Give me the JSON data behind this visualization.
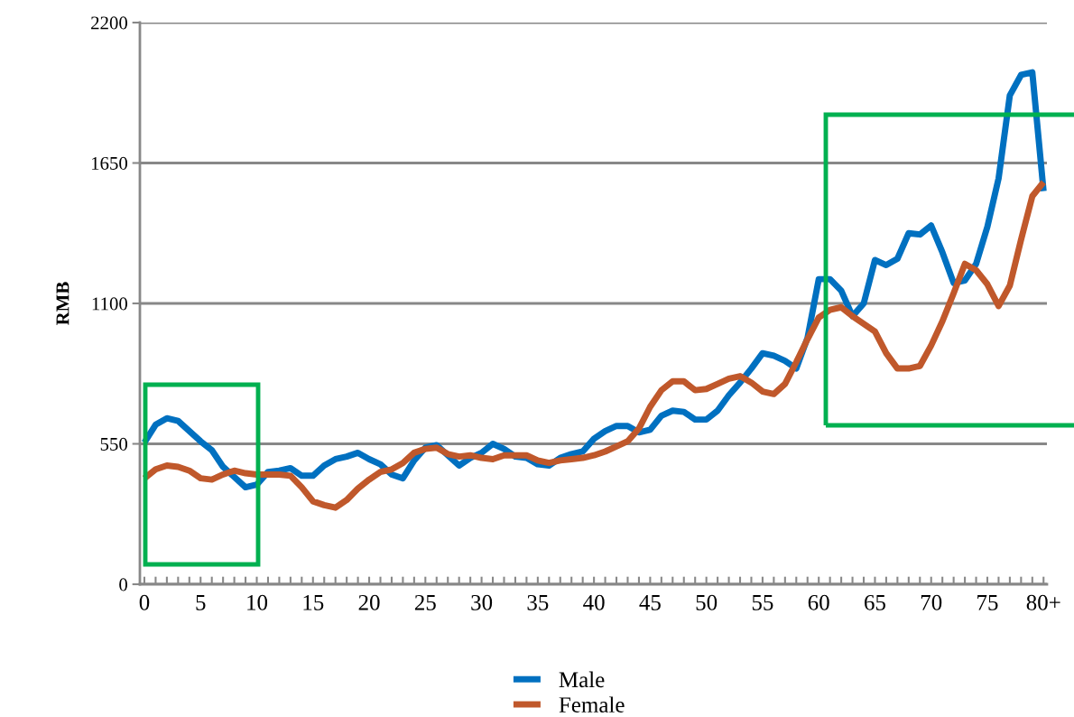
{
  "chart_data": {
    "type": "line",
    "ylabel": "RMB",
    "x": [
      0,
      1,
      2,
      3,
      4,
      5,
      6,
      7,
      8,
      9,
      10,
      11,
      12,
      13,
      14,
      15,
      16,
      17,
      18,
      19,
      20,
      21,
      22,
      23,
      24,
      25,
      26,
      27,
      28,
      29,
      30,
      31,
      32,
      33,
      34,
      35,
      36,
      37,
      38,
      39,
      40,
      41,
      42,
      43,
      44,
      45,
      46,
      47,
      48,
      49,
      50,
      51,
      52,
      53,
      54,
      55,
      56,
      57,
      58,
      59,
      60,
      61,
      62,
      63,
      64,
      65,
      66,
      67,
      68,
      69,
      70,
      71,
      72,
      73,
      74,
      75,
      76,
      77,
      78,
      79,
      80
    ],
    "series": [
      {
        "name": "Male",
        "color": "#0070c0",
        "values": [
          555,
          625,
          650,
          640,
          600,
          560,
          525,
          460,
          420,
          380,
          390,
          440,
          445,
          455,
          425,
          425,
          465,
          490,
          500,
          515,
          490,
          470,
          430,
          415,
          485,
          535,
          545,
          505,
          465,
          495,
          515,
          550,
          530,
          500,
          495,
          470,
          465,
          495,
          510,
          520,
          570,
          600,
          620,
          620,
          595,
          605,
          660,
          680,
          675,
          645,
          645,
          680,
          740,
          790,
          845,
          905,
          895,
          875,
          845,
          965,
          1195,
          1195,
          1150,
          1050,
          1100,
          1270,
          1250,
          1275,
          1375,
          1370,
          1405,
          1300,
          1180,
          1190,
          1255,
          1400,
          1590,
          1915,
          1995,
          2005,
          1540
        ]
      },
      {
        "name": "Female",
        "color": "#c0582b",
        "values": [
          415,
          450,
          465,
          460,
          445,
          415,
          410,
          430,
          445,
          435,
          430,
          430,
          430,
          425,
          380,
          325,
          310,
          300,
          330,
          375,
          410,
          440,
          450,
          475,
          515,
          530,
          535,
          510,
          500,
          505,
          495,
          490,
          505,
          505,
          505,
          485,
          475,
          485,
          490,
          495,
          505,
          520,
          540,
          560,
          610,
          695,
          760,
          795,
          795,
          760,
          765,
          785,
          805,
          815,
          790,
          755,
          745,
          785,
          870,
          960,
          1045,
          1075,
          1085,
          1050,
          1020,
          990,
          905,
          845,
          845,
          855,
          935,
          1030,
          1140,
          1255,
          1230,
          1175,
          1090,
          1170,
          1350,
          1520,
          1575
        ]
      }
    ],
    "xlim": [
      -0.4,
      80.3
    ],
    "xticks": [
      0,
      {
        "value": 1,
        "label": null
      },
      {
        "value": 2,
        "label": null
      },
      {
        "value": 3,
        "label": null
      },
      {
        "value": 4,
        "label": null
      },
      5,
      {
        "value": 6,
        "label": null
      },
      {
        "value": 7,
        "label": null
      },
      {
        "value": 8,
        "label": null
      },
      {
        "value": 9,
        "label": null
      },
      10,
      {
        "value": 11,
        "label": null
      },
      {
        "value": 12,
        "label": null
      },
      {
        "value": 13,
        "label": null
      },
      {
        "value": 14,
        "label": null
      },
      15,
      {
        "value": 16,
        "label": null
      },
      {
        "value": 17,
        "label": null
      },
      {
        "value": 18,
        "label": null
      },
      {
        "value": 19,
        "label": null
      },
      20,
      {
        "value": 21,
        "label": null
      },
      {
        "value": 22,
        "label": null
      },
      {
        "value": 23,
        "label": null
      },
      {
        "value": 24,
        "label": null
      },
      25,
      {
        "value": 26,
        "label": null
      },
      {
        "value": 27,
        "label": null
      },
      {
        "value": 28,
        "label": null
      },
      {
        "value": 29,
        "label": null
      },
      30,
      {
        "value": 31,
        "label": null
      },
      {
        "value": 32,
        "label": null
      },
      {
        "value": 33,
        "label": null
      },
      {
        "value": 34,
        "label": null
      },
      35,
      {
        "value": 36,
        "label": null
      },
      {
        "value": 37,
        "label": null
      },
      {
        "value": 38,
        "label": null
      },
      {
        "value": 39,
        "label": null
      },
      40,
      {
        "value": 41,
        "label": null
      },
      {
        "value": 42,
        "label": null
      },
      {
        "value": 43,
        "label": null
      },
      {
        "value": 44,
        "label": null
      },
      45,
      {
        "value": 46,
        "label": null
      },
      {
        "value": 47,
        "label": null
      },
      {
        "value": 48,
        "label": null
      },
      {
        "value": 49,
        "label": null
      },
      50,
      {
        "value": 51,
        "label": null
      },
      {
        "value": 52,
        "label": null
      },
      {
        "value": 53,
        "label": null
      },
      {
        "value": 54,
        "label": null
      },
      55,
      {
        "value": 56,
        "label": null
      },
      {
        "value": 57,
        "label": null
      },
      {
        "value": 58,
        "label": null
      },
      {
        "value": 59,
        "label": null
      },
      60,
      {
        "value": 61,
        "label": null
      },
      {
        "value": 62,
        "label": null
      },
      {
        "value": 63,
        "label": null
      },
      {
        "value": 64,
        "label": null
      },
      65,
      {
        "value": 66,
        "label": null
      },
      {
        "value": 67,
        "label": null
      },
      {
        "value": 68,
        "label": null
      },
      {
        "value": 69,
        "label": null
      },
      70,
      {
        "value": 71,
        "label": null
      },
      {
        "value": 72,
        "label": null
      },
      {
        "value": 73,
        "label": null
      },
      {
        "value": 74,
        "label": null
      },
      75,
      {
        "value": 76,
        "label": null
      },
      {
        "value": 77,
        "label": null
      },
      {
        "value": 78,
        "label": null
      },
      {
        "value": 79,
        "label": null
      },
      {
        "value": 80,
        "label": "80+"
      }
    ],
    "ylim": [
      0,
      2200
    ],
    "yticks": [
      0,
      550,
      1100,
      1650,
      2200
    ],
    "grid": "y",
    "legend": "bottom",
    "marker": "none",
    "line_style": "solid"
  }
}
